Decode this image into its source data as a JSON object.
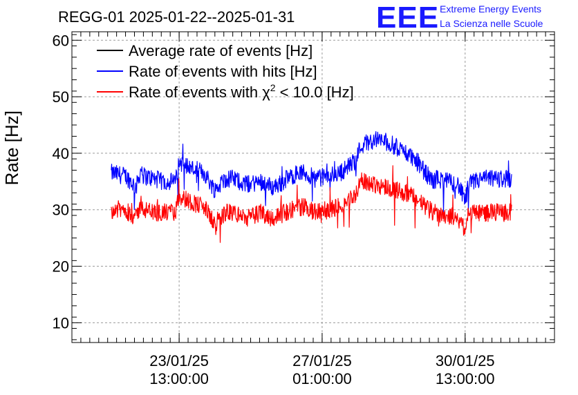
{
  "chart_data": {
    "type": "line",
    "title": "REGG-01 2025-01-22--2025-01-31",
    "ylabel": "Rate [Hz]",
    "xlabel": "",
    "ylim": [
      6.5,
      61.5
    ],
    "y_ticks": [
      10,
      20,
      30,
      40,
      50,
      60
    ],
    "y_tick_labels": [
      "10",
      "20",
      "30",
      "40",
      "50",
      "60"
    ],
    "x_domain_days": [
      -1.5,
      12.0
    ],
    "x_ticks": [
      {
        "day": 1.5,
        "line1": "23/01/25",
        "line2": "13:00:00"
      },
      {
        "day": 5.5,
        "line1": "27/01/25",
        "line2": "01:00:00"
      },
      {
        "day": 9.5,
        "line1": "30/01/25",
        "line2": "13:00:00"
      }
    ],
    "x_unit_note": "days since 2025-01-22 01:00",
    "grid": true,
    "legend_position": "top-left",
    "series": [
      {
        "name": "Average rate of events [Hz]",
        "color": "#000000",
        "x": [],
        "values": []
      },
      {
        "name": "Rate of events with hits [Hz]",
        "color": "#0000ff",
        "x": [
          -0.4,
          0.0,
          0.3,
          0.45,
          0.5,
          0.8,
          1.0,
          1.4,
          1.5,
          1.8,
          2.2,
          2.5,
          2.8,
          3.0,
          3.4,
          3.8,
          4.1,
          4.3,
          4.8,
          5.0,
          5.3,
          5.7,
          6.0,
          6.4,
          6.6,
          7.0,
          7.3,
          7.6,
          8.0,
          8.6,
          8.7,
          9.0,
          9.3,
          9.5,
          9.6,
          10.0,
          10.5,
          10.8
        ],
        "values": [
          36.5,
          36.0,
          34.0,
          37.5,
          36.0,
          35.5,
          35.0,
          35.0,
          38.5,
          37.5,
          36.5,
          33.5,
          35.5,
          35.5,
          34.5,
          35.0,
          34.0,
          34.5,
          36.5,
          36.5,
          35.5,
          36.0,
          36.5,
          38.5,
          41.5,
          42.5,
          42.0,
          41.0,
          39.5,
          35.0,
          35.5,
          35.0,
          34.5,
          31.5,
          34.5,
          35.5,
          35.5,
          35.5
        ]
      },
      {
        "name": "Rate of events with χ² < 10.0 [Hz]",
        "color": "#ff0000",
        "x": [
          -0.4,
          0.0,
          0.3,
          0.45,
          0.5,
          0.8,
          1.0,
          1.4,
          1.5,
          1.8,
          2.2,
          2.5,
          2.8,
          3.0,
          3.4,
          3.8,
          4.1,
          4.3,
          4.8,
          5.0,
          5.3,
          5.7,
          6.0,
          6.4,
          6.6,
          7.0,
          7.3,
          7.6,
          8.0,
          8.6,
          8.7,
          9.0,
          9.3,
          9.5,
          9.6,
          10.0,
          10.5,
          10.8
        ],
        "values": [
          30.0,
          30.0,
          28.5,
          31.5,
          30.0,
          29.5,
          29.5,
          29.5,
          32.5,
          31.5,
          30.5,
          27.5,
          29.5,
          29.5,
          28.5,
          29.5,
          28.5,
          29.0,
          30.5,
          30.5,
          29.5,
          30.0,
          30.5,
          32.5,
          35.0,
          34.5,
          34.0,
          33.5,
          32.5,
          29.5,
          29.5,
          29.0,
          28.5,
          26.5,
          29.5,
          29.5,
          29.5,
          29.5
        ]
      }
    ]
  },
  "logo": {
    "mark": "EEE",
    "line1": "Extreme Energy Events",
    "line2": "La Scienza nelle Scuole",
    "color": "#1a1aff"
  },
  "legend": {
    "items": [
      {
        "prefix": "Average rate of events [Hz]",
        "sup": "",
        "suffix": ""
      },
      {
        "prefix": "Rate of events with hits [Hz]",
        "sup": "",
        "suffix": ""
      },
      {
        "prefix": "Rate of events with χ",
        "sup": "2",
        "suffix": " < 10.0 [Hz]"
      }
    ]
  }
}
